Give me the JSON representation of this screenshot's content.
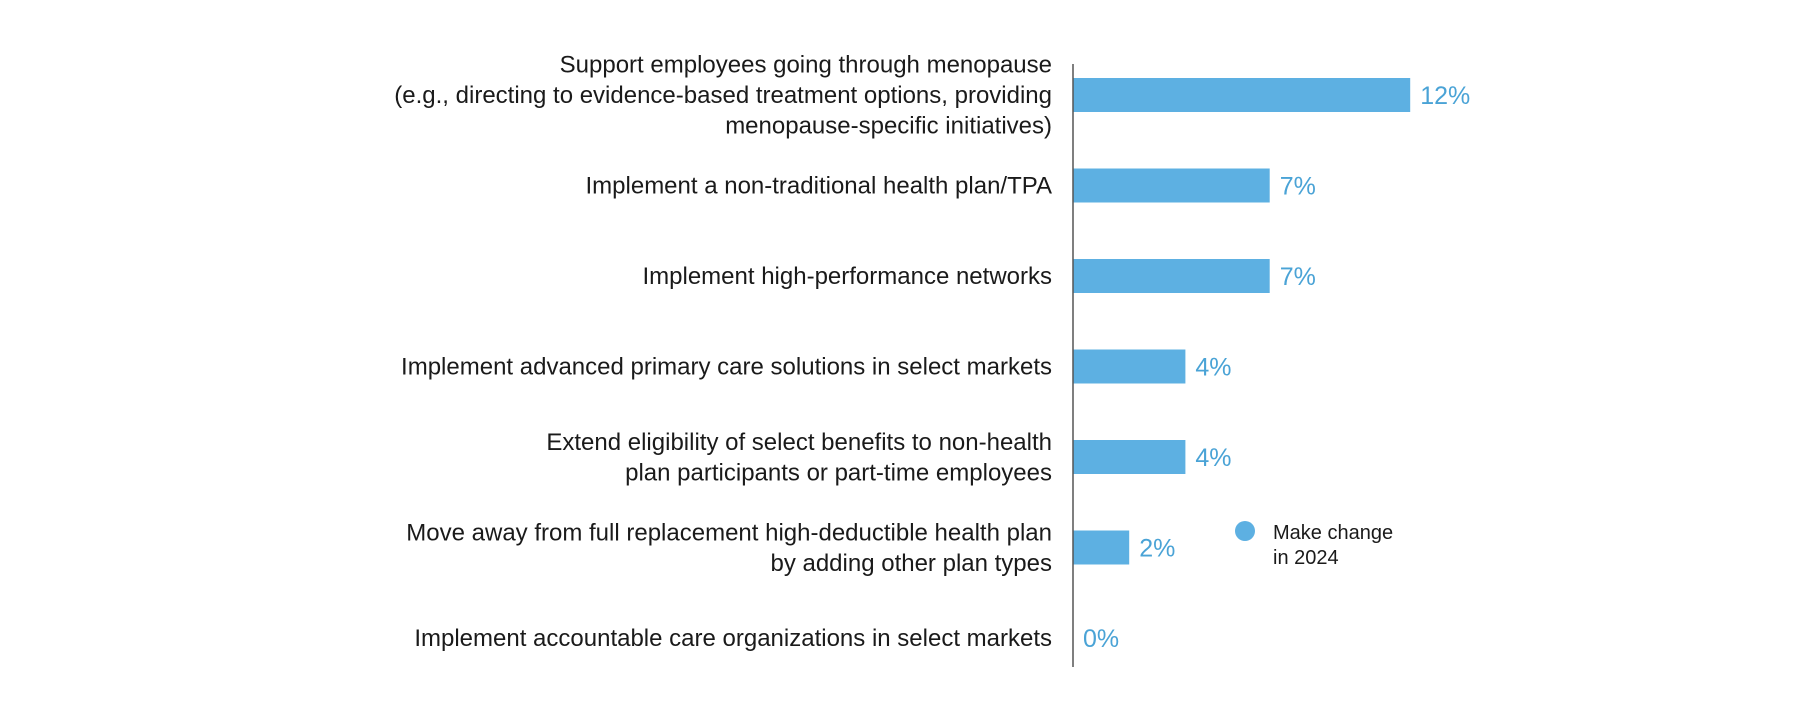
{
  "chart_data": {
    "type": "bar",
    "orientation": "horizontal",
    "categories": [
      [
        "Support employees going through menopause",
        "(e.g., directing to evidence-based treatment options, providing",
        "menopause-specific initiatives)"
      ],
      [
        "Implement a non-traditional health plan/TPA"
      ],
      [
        "Implement high-performance networks"
      ],
      [
        "Implement advanced primary care solutions in select markets"
      ],
      [
        "Extend eligibility of select benefits to non-health",
        "plan participants or part-time employees"
      ],
      [
        "Move away from full replacement high-deductible health plan",
        "by adding other plan types"
      ],
      [
        "Implement accountable care organizations in select markets"
      ]
    ],
    "series": [
      {
        "name": "Make change in 2024",
        "values": [
          12,
          7,
          7,
          4,
          4,
          2,
          0
        ],
        "value_labels": [
          "12%",
          "7%",
          "7%",
          "4%",
          "4%",
          "2%",
          "0%"
        ],
        "color": "#5db0e2"
      }
    ],
    "value_label_color": "#4aa3d6",
    "axis_color": "#555555",
    "xlim": [
      0,
      12
    ],
    "legend": {
      "placement": "right",
      "lines": [
        "Make change",
        "in 2024"
      ]
    }
  }
}
